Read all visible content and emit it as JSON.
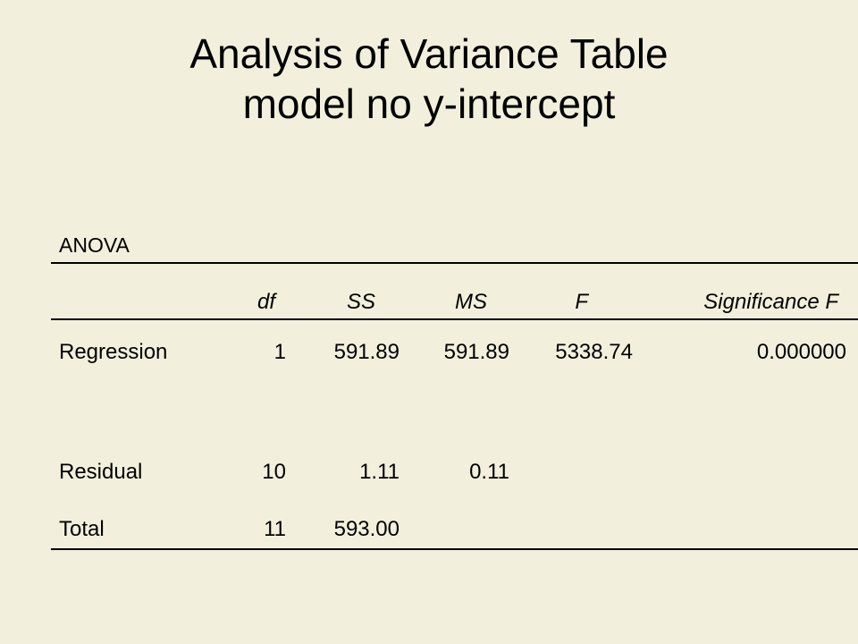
{
  "title": {
    "line1": "Analysis of Variance Table",
    "line2": "model no y-intercept"
  },
  "table": {
    "label": "ANOVA",
    "headers": [
      "df",
      "SS",
      "MS",
      "F",
      "Significance F"
    ],
    "rows": [
      {
        "name": "Regression",
        "df": "1",
        "ss": "591.89",
        "ms": "591.89",
        "f": "5338.74",
        "sig": "0.000000"
      },
      {
        "name": "Residual",
        "df": "10",
        "ss": "1.11",
        "ms": "0.11",
        "f": "",
        "sig": ""
      },
      {
        "name": "Total",
        "df": "11",
        "ss": "593.00",
        "ms": "",
        "f": "",
        "sig": ""
      }
    ]
  }
}
